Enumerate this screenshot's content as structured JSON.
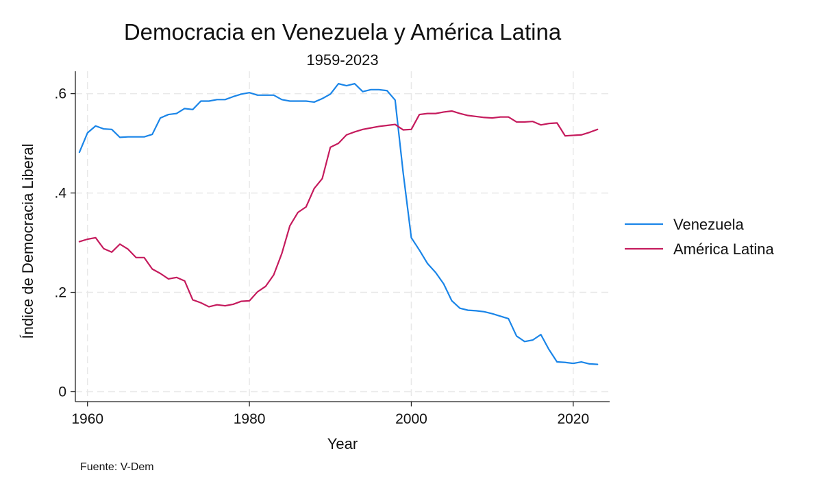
{
  "chart_data": {
    "type": "line",
    "title": "Democracia en Venezuela y América Latina",
    "subtitle": "1959-2023",
    "xlabel": "Year",
    "ylabel": "Índice de Democracia Liberal",
    "xlim": [
      1958.5,
      2024.5
    ],
    "ylim": [
      -0.02,
      0.645
    ],
    "x_ticks": [
      1960,
      1980,
      2000,
      2020
    ],
    "x_tick_labels": [
      "1960",
      "1980",
      "2000",
      "2020"
    ],
    "y_ticks": [
      0,
      0.2,
      0.4,
      0.6
    ],
    "y_tick_labels": [
      "0",
      ".2",
      ".4",
      ".6"
    ],
    "grid": true,
    "legend_position": "right",
    "note": "Fuente: V-Dem",
    "x": [
      1959,
      1960,
      1961,
      1962,
      1963,
      1964,
      1965,
      1966,
      1967,
      1968,
      1969,
      1970,
      1971,
      1972,
      1973,
      1974,
      1975,
      1976,
      1977,
      1978,
      1979,
      1980,
      1981,
      1982,
      1983,
      1984,
      1985,
      1986,
      1987,
      1988,
      1989,
      1990,
      1991,
      1992,
      1993,
      1994,
      1995,
      1996,
      1997,
      1998,
      1999,
      2000,
      2001,
      2002,
      2003,
      2004,
      2005,
      2006,
      2007,
      2008,
      2009,
      2010,
      2011,
      2012,
      2013,
      2014,
      2015,
      2016,
      2017,
      2018,
      2019,
      2020,
      2021,
      2022,
      2023
    ],
    "series": [
      {
        "name": "Venezuela",
        "color": "#1a85e8",
        "values": [
          0.482,
          0.521,
          0.535,
          0.529,
          0.528,
          0.512,
          0.513,
          0.513,
          0.513,
          0.518,
          0.551,
          0.558,
          0.56,
          0.57,
          0.568,
          0.585,
          0.585,
          0.588,
          0.588,
          0.594,
          0.599,
          0.602,
          0.597,
          0.597,
          0.597,
          0.588,
          0.585,
          0.585,
          0.585,
          0.583,
          0.59,
          0.599,
          0.62,
          0.616,
          0.62,
          0.604,
          0.608,
          0.608,
          0.606,
          0.587,
          0.44,
          0.31,
          0.285,
          0.258,
          0.24,
          0.217,
          0.183,
          0.168,
          0.164,
          0.163,
          0.161,
          0.157,
          0.152,
          0.147,
          0.112,
          0.101,
          0.104,
          0.115,
          0.085,
          0.06,
          0.059,
          0.057,
          0.06,
          0.056,
          0.055
        ]
      },
      {
        "name": "América Latina",
        "color": "#c51b5d",
        "values": [
          0.302,
          0.307,
          0.31,
          0.288,
          0.281,
          0.297,
          0.287,
          0.27,
          0.27,
          0.247,
          0.238,
          0.227,
          0.23,
          0.223,
          0.185,
          0.179,
          0.171,
          0.175,
          0.173,
          0.176,
          0.182,
          0.183,
          0.201,
          0.212,
          0.235,
          0.278,
          0.334,
          0.361,
          0.372,
          0.409,
          0.429,
          0.492,
          0.5,
          0.517,
          0.523,
          0.528,
          0.531,
          0.534,
          0.536,
          0.538,
          0.527,
          0.528,
          0.558,
          0.56,
          0.56,
          0.563,
          0.565,
          0.56,
          0.556,
          0.554,
          0.552,
          0.551,
          0.553,
          0.553,
          0.543,
          0.543,
          0.544,
          0.537,
          0.54,
          0.541,
          0.515,
          0.516,
          0.517,
          0.522,
          0.528
        ]
      }
    ]
  }
}
